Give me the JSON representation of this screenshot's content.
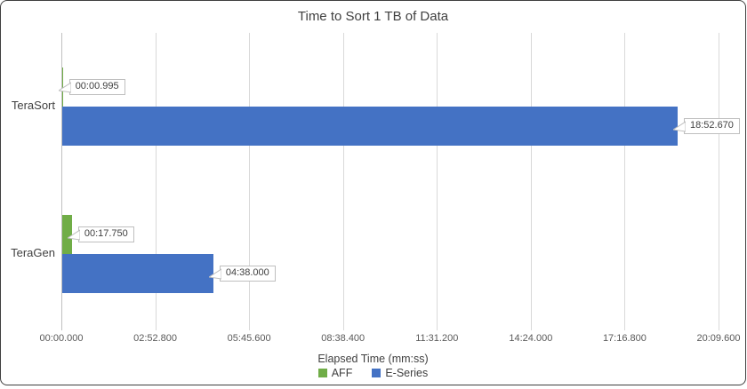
{
  "chart_data": {
    "type": "bar",
    "orientation": "horizontal",
    "title": "Time to Sort 1 TB of Data",
    "xlabel": "Elapsed Time (mm:ss)",
    "categories": [
      "TeraSort",
      "TeraGen"
    ],
    "series": [
      {
        "name": "AFF",
        "color": "#70AD47",
        "values_seconds": [
          0.995,
          17.75
        ],
        "data_labels": [
          "00:00.995",
          "00:17.750"
        ]
      },
      {
        "name": "E-Series",
        "color": "#4472C4",
        "values_seconds": [
          1132.67,
          278.0
        ],
        "data_labels": [
          "18:52.670",
          "04:38.000"
        ]
      }
    ],
    "x_ticks": [
      {
        "label": "00:00.000",
        "seconds": 0
      },
      {
        "label": "02:52.800",
        "seconds": 172.8
      },
      {
        "label": "05:45.600",
        "seconds": 345.6
      },
      {
        "label": "08:38.400",
        "seconds": 518.4
      },
      {
        "label": "11:31.200",
        "seconds": 691.2
      },
      {
        "label": "14:24.000",
        "seconds": 864.0
      },
      {
        "label": "17:16.800",
        "seconds": 1036.8
      },
      {
        "label": "20:09.600",
        "seconds": 1209.6
      }
    ],
    "axis_max_seconds": 1209.6,
    "grid": true,
    "legend_position": "bottom",
    "colors": {
      "gridline": "#D9D9D9",
      "axis_line": "#C0C0C0",
      "text": "#404040",
      "tick_text": "#595959",
      "callout_border": "#BFBFBF",
      "frame_border": "#3F3F3F"
    }
  }
}
